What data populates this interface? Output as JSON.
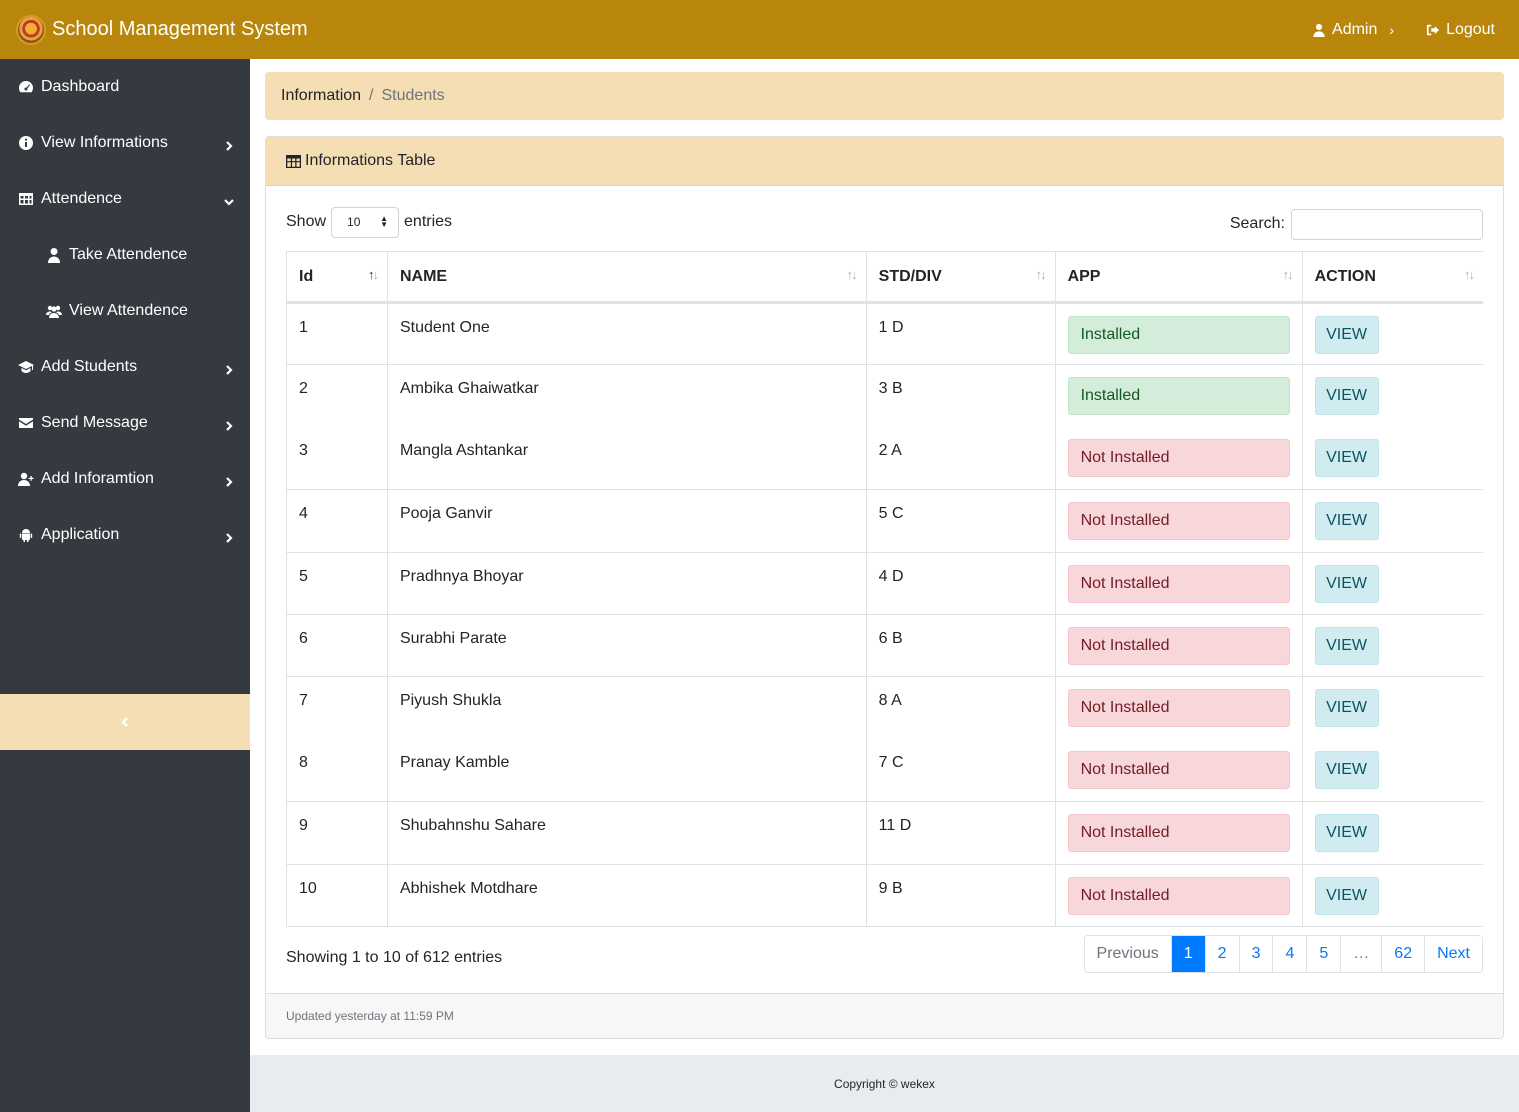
{
  "header": {
    "title": "School Management System",
    "user_label": "Admin",
    "logout_label": "Logout"
  },
  "sidebar": {
    "items": [
      {
        "label": "Dashboard",
        "icon": "dashboard-icon"
      },
      {
        "label": "View Informations",
        "icon": "info-circle-icon"
      },
      {
        "label": "Attendence",
        "icon": "table-icon"
      },
      {
        "label": "Take Attendence",
        "icon": "user-icon"
      },
      {
        "label": "View Attendence",
        "icon": "users-icon"
      },
      {
        "label": "Add Students",
        "icon": "graduation-cap-icon"
      },
      {
        "label": "Send Message",
        "icon": "envelope-icon"
      },
      {
        "label": "Add Inforamtion",
        "icon": "user-plus-icon"
      },
      {
        "label": "Application",
        "icon": "android-icon"
      }
    ]
  },
  "breadcrumb": {
    "parent": "Information",
    "separator": "/",
    "current": "Students"
  },
  "card": {
    "title": "Informations Table",
    "show_label": "Show",
    "page_length": "10",
    "entries_label": "entries",
    "search_label": "Search:",
    "search_value": "",
    "footer_text": "Updated yesterday at 11:59 PM"
  },
  "table": {
    "columns": [
      "Id",
      "NAME",
      "STD/DIV",
      "APP",
      "ACTION"
    ],
    "rows": [
      {
        "id": "1",
        "name": "Student One",
        "std": "1 D",
        "app": "Installed",
        "action": "VIEW"
      },
      {
        "id": "2",
        "name": "Ambika Ghaiwatkar",
        "std": "3 B",
        "app": "Installed",
        "action": "VIEW"
      },
      {
        "id": "3",
        "name": "Mangla Ashtankar",
        "std": "2 A",
        "app": "Not Installed",
        "action": "VIEW"
      },
      {
        "id": "4",
        "name": "Pooja Ganvir",
        "std": "5 C",
        "app": "Not Installed",
        "action": "VIEW"
      },
      {
        "id": "5",
        "name": "Pradhnya Bhoyar",
        "std": "4 D",
        "app": "Not Installed",
        "action": "VIEW"
      },
      {
        "id": "6",
        "name": "Surabhi Parate",
        "std": "6 B",
        "app": "Not Installed",
        "action": "VIEW"
      },
      {
        "id": "7",
        "name": "Piyush Shukla",
        "std": "8 A",
        "app": "Not Installed",
        "action": "VIEW"
      },
      {
        "id": "8",
        "name": "Pranay Kamble",
        "std": "7 C",
        "app": "Not Installed",
        "action": "VIEW"
      },
      {
        "id": "9",
        "name": "Shubahnshu Sahare",
        "std": "11 D",
        "app": "Not Installed",
        "action": "VIEW"
      },
      {
        "id": "10",
        "name": "Abhishek Motdhare",
        "std": "9 B",
        "app": "Not Installed",
        "action": "VIEW"
      }
    ]
  },
  "pagination": {
    "info": "Showing 1 to 10 of 612 entries",
    "previous": "Previous",
    "pages": [
      "1",
      "2",
      "3",
      "4",
      "5",
      "…",
      "62"
    ],
    "next": "Next",
    "current_page": "1"
  },
  "footer": {
    "copyright": "Copyright © wekex"
  },
  "colors": {
    "topbar": "#b8860b",
    "sidebar": "#343a40",
    "accent_light": "#f5deb3",
    "installed_bg": "#d4edda",
    "not_installed_bg": "#f8d7da",
    "view_bg": "#d1ecf1",
    "page_active": "#007bff"
  }
}
